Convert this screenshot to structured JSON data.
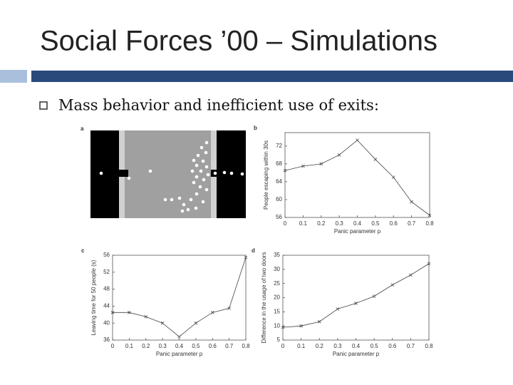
{
  "title": "Social Forces ’00 – Simulations",
  "bullet": "Mass behavior and inefficient use of exits:",
  "panel_a": {
    "label": "a"
  },
  "chart_data": [
    {
      "type": "line",
      "label": "b",
      "x": [
        0,
        0.1,
        0.2,
        0.3,
        0.4,
        0.5,
        0.6,
        0.7,
        0.8
      ],
      "series": [
        {
          "color": "#444444",
          "values": [
            66.5,
            67.5,
            68,
            70,
            73.3,
            69,
            65,
            59.5,
            56.5
          ]
        }
      ],
      "xlim": [
        0,
        0.8
      ],
      "ylim": [
        56,
        75
      ],
      "xticks": [
        0,
        0.1,
        0.2,
        0.3,
        0.4,
        0.5,
        0.6,
        0.7,
        0.8
      ],
      "yticks": [
        56,
        60,
        64,
        68,
        72
      ],
      "x_label": "Panic parameter p",
      "y_label": "People escaping within 30s"
    },
    {
      "type": "line",
      "label": "c",
      "x": [
        0,
        0.1,
        0.2,
        0.3,
        0.4,
        0.5,
        0.6,
        0.7,
        0.8
      ],
      "series": [
        {
          "color": "#444444",
          "values": [
            42.5,
            42.5,
            41.5,
            40,
            36.8,
            40,
            42.5,
            43.5,
            55.5
          ]
        }
      ],
      "xlim": [
        0,
        0.8
      ],
      "ylim": [
        36,
        56
      ],
      "xticks": [
        0,
        0.1,
        0.2,
        0.3,
        0.4,
        0.5,
        0.6,
        0.7,
        0.8
      ],
      "yticks": [
        36,
        40,
        44,
        48,
        52,
        56
      ],
      "x_label": "Panic parameter p",
      "y_label": "Leaving time for 50 people (s)"
    },
    {
      "type": "line",
      "label": "d",
      "x": [
        0,
        0.1,
        0.2,
        0.3,
        0.4,
        0.5,
        0.6,
        0.7,
        0.8
      ],
      "series": [
        {
          "color": "#444444",
          "values": [
            9.5,
            10,
            11.5,
            16,
            18,
            20.5,
            24.5,
            28,
            32
          ]
        }
      ],
      "xlim": [
        0,
        0.8
      ],
      "ylim": [
        5,
        35
      ],
      "xticks": [
        0,
        0.1,
        0.2,
        0.3,
        0.4,
        0.5,
        0.6,
        0.7,
        0.8
      ],
      "yticks": [
        5,
        10,
        15,
        20,
        25,
        30,
        35
      ],
      "x_label": "Panic parameter p",
      "y_label": "Difference in the usage of two doors"
    }
  ]
}
